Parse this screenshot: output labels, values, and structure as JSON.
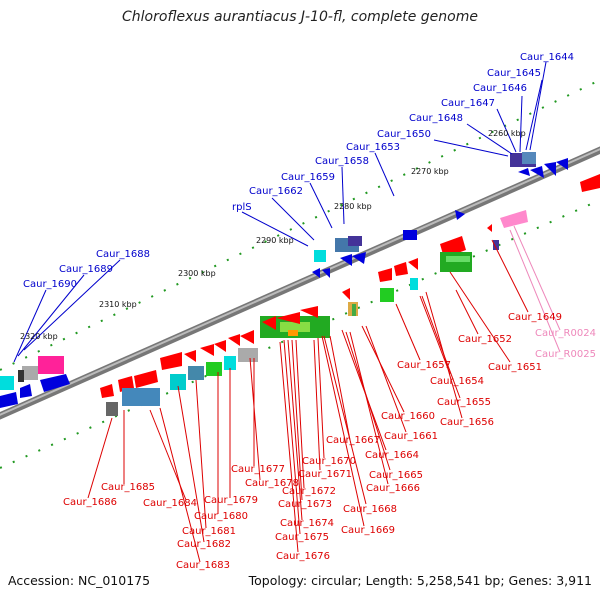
{
  "title": "Chloroflexus aurantiacus J-10-fl, complete genome",
  "footer": {
    "accession": "Accession: NC_010175",
    "summary": "Topology: circular; Length: 5,258,541 bp; Genes: 3,911"
  },
  "colors": {
    "backbone": "#888888",
    "forward_labels": "#0000cc",
    "reverse_labels": "#dd0000",
    "rna_labels": "#ee88bb",
    "tick_dots": "#228822"
  },
  "scale_ticks": [
    "2260 kbp",
    "2270 kbp",
    "2280 kbp",
    "2290 kbp",
    "2300 kbp",
    "2310 kbp",
    "2320 kbp"
  ],
  "forward_genes": [
    "Caur_1644",
    "Caur_1645",
    "Caur_1646",
    "Caur_1647",
    "Caur_1648",
    "Caur_1650",
    "Caur_1653",
    "Caur_1658",
    "Caur_1659",
    "Caur_1662",
    "rplS",
    "Caur_1688",
    "Caur_1689",
    "Caur_1690"
  ],
  "reverse_genes": [
    "Caur_1649",
    "Caur_1651",
    "Caur_1652",
    "Caur_1654",
    "Caur_1655",
    "Caur_1656",
    "Caur_1657",
    "Caur_1660",
    "Caur_1661",
    "Caur_1664",
    "Caur_1665",
    "Caur_1666",
    "Caur_1667",
    "Caur_1668",
    "Caur_1669",
    "Caur_1670",
    "Caur_1671",
    "Caur_1672",
    "Caur_1673",
    "Caur_1674",
    "Caur_1675",
    "Caur_1676",
    "Caur_1677",
    "Caur_1678",
    "Caur_1679",
    "Caur_1680",
    "Caur_1681",
    "Caur_1682",
    "Caur_1683",
    "Caur_1684",
    "Caur_1685",
    "Caur_1686"
  ],
  "rna_genes": [
    "Caur_R0024",
    "Caur_R0025"
  ]
}
